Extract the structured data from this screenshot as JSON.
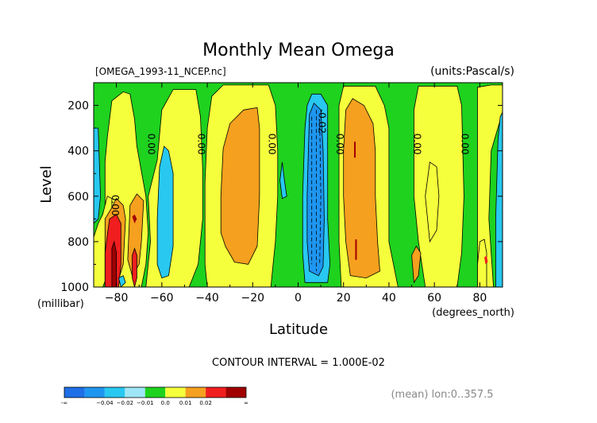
{
  "chart_data": {
    "type": "heatmap",
    "title": "Monthly Mean Omega",
    "file_label": "[OMEGA_1993-11_NCEP.nc]",
    "units_label": "(units:Pascal/s)",
    "xlabel": "Latitude",
    "x_unit_label": "(degrees_north)",
    "ylabel": "Level",
    "y_unit_label": "(millibar)",
    "xlim": [
      -90,
      90
    ],
    "ylim": [
      1000,
      100
    ],
    "x_ticks": [
      -80,
      -60,
      -40,
      -20,
      0,
      20,
      40,
      60,
      80
    ],
    "y_ticks": [
      200,
      400,
      600,
      800,
      1000
    ],
    "contour_interval_label": "CONTOUR INTERVAL = 1.000E-02",
    "footer_label": "(mean) lon:0..357.5",
    "colorbar": {
      "labels": [
        "-∞",
        "−0.04",
        "−0.02",
        "−0.01",
        "0.0",
        "0.01",
        "0.02",
        "∞"
      ],
      "colors": [
        "#1e6ee6",
        "#1e96f0",
        "#28c8f0",
        "#9ee6f5",
        "#1ed21e",
        "#f5ff3c",
        "#f5a01e",
        "#f01e1e",
        "#a00000"
      ]
    },
    "contour_labels": [
      {
        "text": "0.00",
        "lat": -66,
        "lev": 370
      },
      {
        "text": "0.00",
        "lat": -44,
        "lev": 370
      },
      {
        "text": "0.00",
        "lat": -13,
        "lev": 370
      },
      {
        "text": "-0.02",
        "lat": 9,
        "lev": 270
      },
      {
        "text": "0.00",
        "lat": 17,
        "lev": 370
      },
      {
        "text": "0.00",
        "lat": 51,
        "lev": 370
      },
      {
        "text": "0.00",
        "lat": 72,
        "lev": 370
      },
      {
        "text": "0.00",
        "lat": -82,
        "lev": 640
      }
    ]
  }
}
